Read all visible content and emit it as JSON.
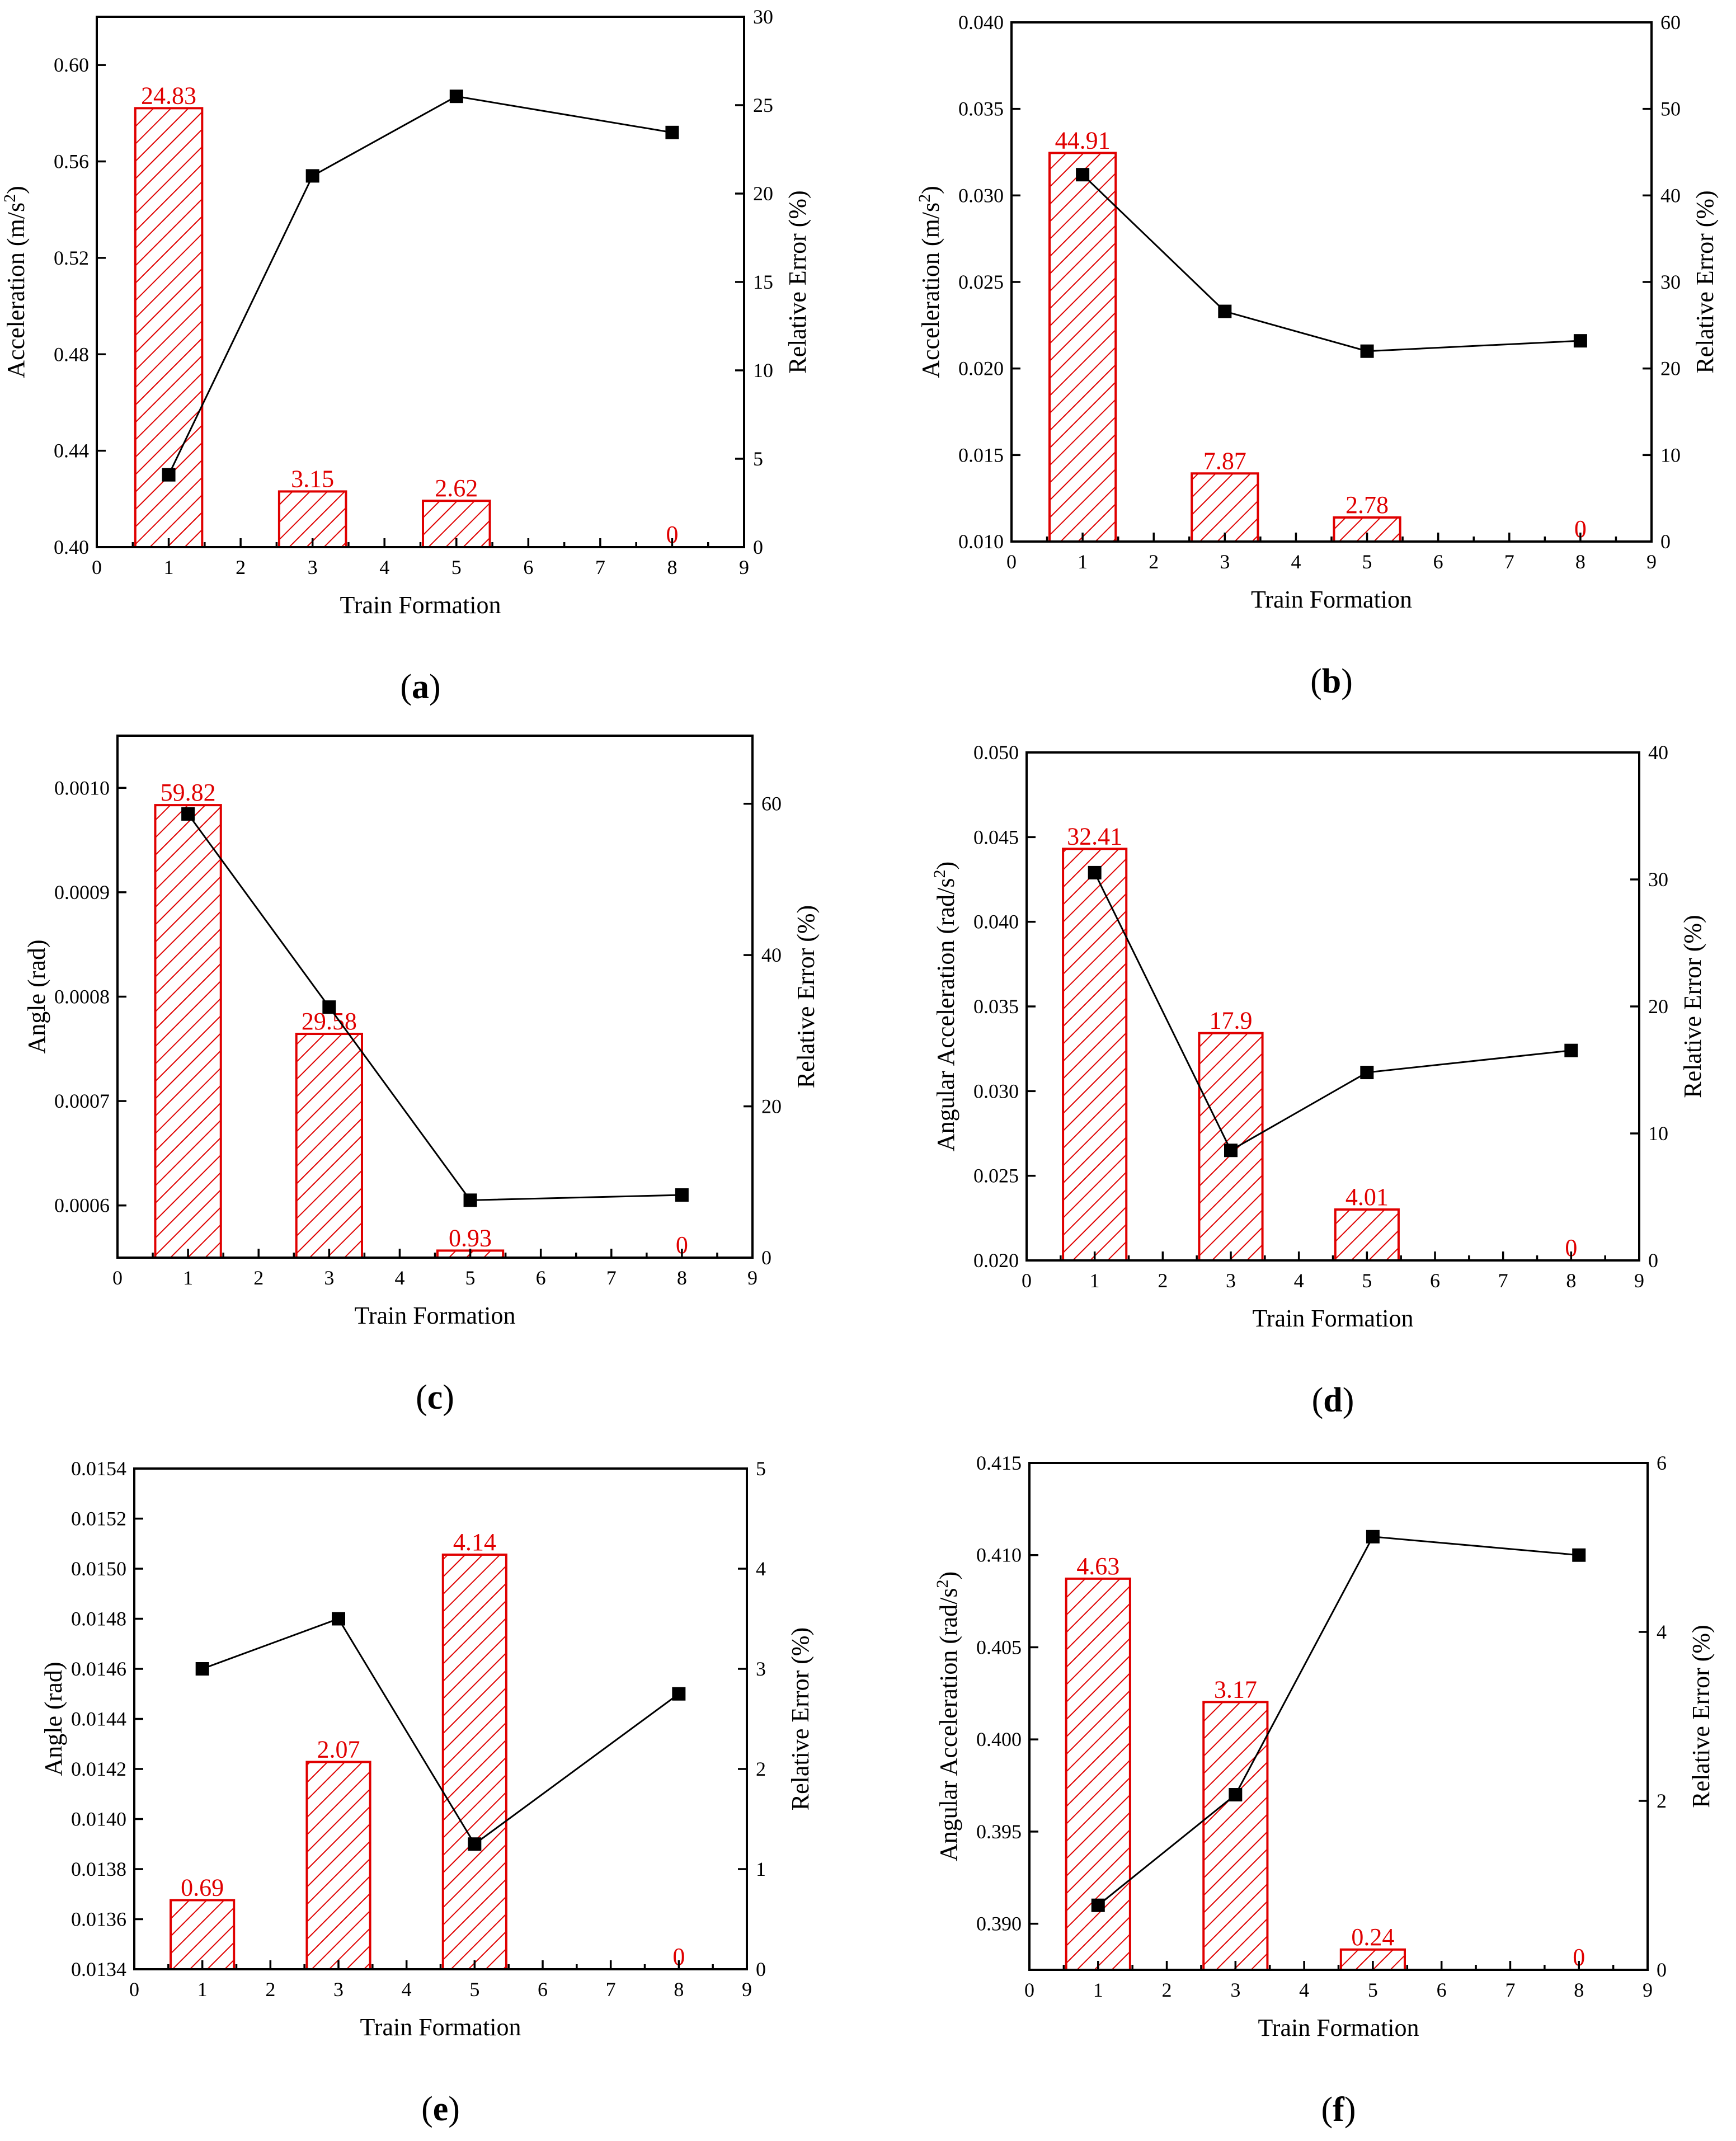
{
  "chart_data": [
    {
      "id": "a",
      "type": "bar+line",
      "panel_label": "a",
      "xlabel": "Train Formation",
      "ylabel_left": "Acceleration (m/s²)",
      "ylabel_right": "Relative Error (%)",
      "xlim": [
        0,
        9
      ],
      "xticks": [
        0,
        1,
        2,
        3,
        4,
        5,
        6,
        7,
        8,
        9
      ],
      "ylim_left": [
        0.4,
        0.62
      ],
      "yticks_left": [
        "0.40",
        "0.44",
        "0.48",
        "0.52",
        "0.56",
        "0.60"
      ],
      "ylim_right": [
        0,
        30
      ],
      "yticks_right": [
        "0",
        "5",
        "10",
        "15",
        "20",
        "25",
        "30"
      ],
      "bars": {
        "name": "Relative Error (%)",
        "axis": "right",
        "x": [
          1,
          3,
          5,
          8
        ],
        "values": [
          24.83,
          3.15,
          2.62,
          0
        ],
        "labels": [
          "24.83",
          "3.15",
          "2.62",
          "0"
        ]
      },
      "line": {
        "name": "Acceleration",
        "axis": "left",
        "x": [
          1,
          3,
          5,
          8
        ],
        "values": [
          0.43,
          0.554,
          0.587,
          0.572
        ]
      }
    },
    {
      "id": "b",
      "type": "bar+line",
      "panel_label": "b",
      "xlabel": "Train Formation",
      "ylabel_left": "Acceleration (m/s²)",
      "ylabel_right": "Relative Error (%)",
      "xlim": [
        0,
        9
      ],
      "xticks": [
        0,
        1,
        2,
        3,
        4,
        5,
        6,
        7,
        8,
        9
      ],
      "ylim_left": [
        0.01,
        0.04
      ],
      "yticks_left": [
        "0.010",
        "0.015",
        "0.020",
        "0.025",
        "0.030",
        "0.035",
        "0.040"
      ],
      "ylim_right": [
        0,
        60
      ],
      "yticks_right": [
        "0",
        "10",
        "20",
        "30",
        "40",
        "50",
        "60"
      ],
      "bars": {
        "name": "Relative Error (%)",
        "axis": "right",
        "x": [
          1,
          3,
          5,
          8
        ],
        "values": [
          44.91,
          7.87,
          2.78,
          0
        ],
        "labels": [
          "44.91",
          "7.87",
          "2.78",
          "0"
        ]
      },
      "line": {
        "name": "Acceleration",
        "axis": "left",
        "x": [
          1,
          3,
          5,
          8
        ],
        "values": [
          0.0312,
          0.0233,
          0.021,
          0.0216
        ]
      }
    },
    {
      "id": "c",
      "type": "bar+line",
      "panel_label": "c",
      "xlabel": "Train Formation",
      "ylabel_left": "Angle (rad)",
      "ylabel_right": "Relative Error (%)",
      "xlim": [
        0,
        9
      ],
      "xticks": [
        0,
        1,
        2,
        3,
        4,
        5,
        6,
        7,
        8,
        9
      ],
      "ylim_left": [
        0.00055,
        0.00105
      ],
      "yticks_left": [
        "0.0006",
        "0.0007",
        "0.0008",
        "0.0009",
        "0.0010"
      ],
      "ylim_right": [
        0,
        69
      ],
      "yticks_right": [
        "0",
        "20",
        "40",
        "60"
      ],
      "bars": {
        "name": "Relative Error (%)",
        "axis": "right",
        "x": [
          1,
          3,
          5,
          8
        ],
        "values": [
          59.82,
          29.58,
          0.93,
          0
        ],
        "labels": [
          "59.82",
          "29.58",
          "0.93",
          "0"
        ]
      },
      "line": {
        "name": "Angle",
        "axis": "left",
        "x": [
          1,
          3,
          5,
          8
        ],
        "values": [
          0.000975,
          0.00079,
          0.000605,
          0.00061
        ]
      }
    },
    {
      "id": "d",
      "type": "bar+line",
      "panel_label": "d",
      "xlabel": "Train Formation",
      "ylabel_left": "Angular Acceleration (rad/s²)",
      "ylabel_right": "Relative Error (%)",
      "xlim": [
        0,
        9
      ],
      "xticks": [
        0,
        1,
        2,
        3,
        4,
        5,
        6,
        7,
        8,
        9
      ],
      "ylim_left": [
        0.02,
        0.05
      ],
      "yticks_left": [
        "0.020",
        "0.025",
        "0.030",
        "0.035",
        "0.040",
        "0.045",
        "0.050"
      ],
      "ylim_right": [
        0,
        40
      ],
      "yticks_right": [
        "0",
        "10",
        "20",
        "30",
        "40"
      ],
      "bars": {
        "name": "Relative Error (%)",
        "axis": "right",
        "x": [
          1,
          3,
          5,
          8
        ],
        "values": [
          32.41,
          17.9,
          4.01,
          0
        ],
        "labels": [
          "32.41",
          "17.9",
          "4.01",
          "0"
        ]
      },
      "line": {
        "name": "Angular Acceleration",
        "axis": "left",
        "x": [
          1,
          3,
          5,
          8
        ],
        "values": [
          0.0429,
          0.0265,
          0.0311,
          0.0324
        ]
      }
    },
    {
      "id": "e",
      "type": "bar+line",
      "panel_label": "e",
      "xlabel": "Train Formation",
      "ylabel_left": "Angle (rad)",
      "ylabel_right": "Relative Error (%)",
      "xlim": [
        0,
        9
      ],
      "xticks": [
        0,
        1,
        2,
        3,
        4,
        5,
        6,
        7,
        8,
        9
      ],
      "ylim_left": [
        0.0134,
        0.0154
      ],
      "yticks_left": [
        "0.0134",
        "0.0136",
        "0.0138",
        "0.0140",
        "0.0142",
        "0.0144",
        "0.0146",
        "0.0148",
        "0.0150",
        "0.0152",
        "0.0154"
      ],
      "ylim_right": [
        0,
        5
      ],
      "yticks_right": [
        "0",
        "1",
        "2",
        "3",
        "4",
        "5"
      ],
      "bars": {
        "name": "Relative Error (%)",
        "axis": "right",
        "x": [
          1,
          3,
          5,
          8
        ],
        "values": [
          0.69,
          2.07,
          4.14,
          0
        ],
        "labels": [
          "0.69",
          "2.07",
          "4.14",
          "0"
        ]
      },
      "line": {
        "name": "Angle",
        "axis": "left",
        "x": [
          1,
          3,
          5,
          8
        ],
        "values": [
          0.0146,
          0.0148,
          0.0139,
          0.0145
        ]
      }
    },
    {
      "id": "f",
      "type": "bar+line",
      "panel_label": "f",
      "xlabel": "Train Formation",
      "ylabel_left": "Angular Acceleration (rad/s²)",
      "ylabel_right": "Relative Error (%)",
      "xlim": [
        0,
        9
      ],
      "xticks": [
        0,
        1,
        2,
        3,
        4,
        5,
        6,
        7,
        8,
        9
      ],
      "ylim_left": [
        0.3875,
        0.415
      ],
      "yticks_left": [
        "0.390",
        "0.395",
        "0.400",
        "0.405",
        "0.410",
        "0.415"
      ],
      "ylim_right": [
        0,
        6
      ],
      "yticks_right": [
        "0",
        "2",
        "4",
        "6"
      ],
      "bars": {
        "name": "Relative Error (%)",
        "axis": "right",
        "x": [
          1,
          3,
          5,
          8
        ],
        "values": [
          4.63,
          3.17,
          0.24,
          0
        ],
        "labels": [
          "4.63",
          "3.17",
          "0.24",
          "0"
        ]
      },
      "line": {
        "name": "Angular Acceleration",
        "axis": "left",
        "x": [
          1,
          3,
          5,
          8
        ],
        "values": [
          0.391,
          0.397,
          0.411,
          0.41
        ]
      }
    }
  ]
}
